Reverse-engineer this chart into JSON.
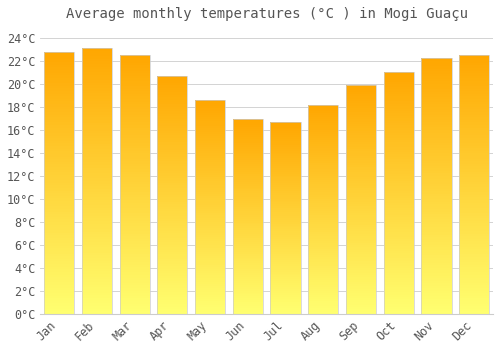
{
  "title": "Average monthly temperatures (°C ) in Mogi Guaçu",
  "months": [
    "Jan",
    "Feb",
    "Mar",
    "Apr",
    "May",
    "Jun",
    "Jul",
    "Aug",
    "Sep",
    "Oct",
    "Nov",
    "Dec"
  ],
  "temperatures": [
    22.8,
    23.1,
    22.5,
    20.7,
    18.6,
    16.9,
    16.7,
    18.2,
    19.9,
    21.0,
    22.2,
    22.5
  ],
  "bar_color_top": "#FFA500",
  "bar_color_bottom": "#FFD070",
  "bar_edge_color": "#CCCCCC",
  "background_color": "#FFFFFF",
  "grid_color": "#CCCCCC",
  "text_color": "#555555",
  "ylim": [
    0,
    25
  ],
  "yticks": [
    0,
    2,
    4,
    6,
    8,
    10,
    12,
    14,
    16,
    18,
    20,
    22,
    24
  ],
  "title_fontsize": 10,
  "tick_fontsize": 8.5,
  "bar_width": 0.8
}
